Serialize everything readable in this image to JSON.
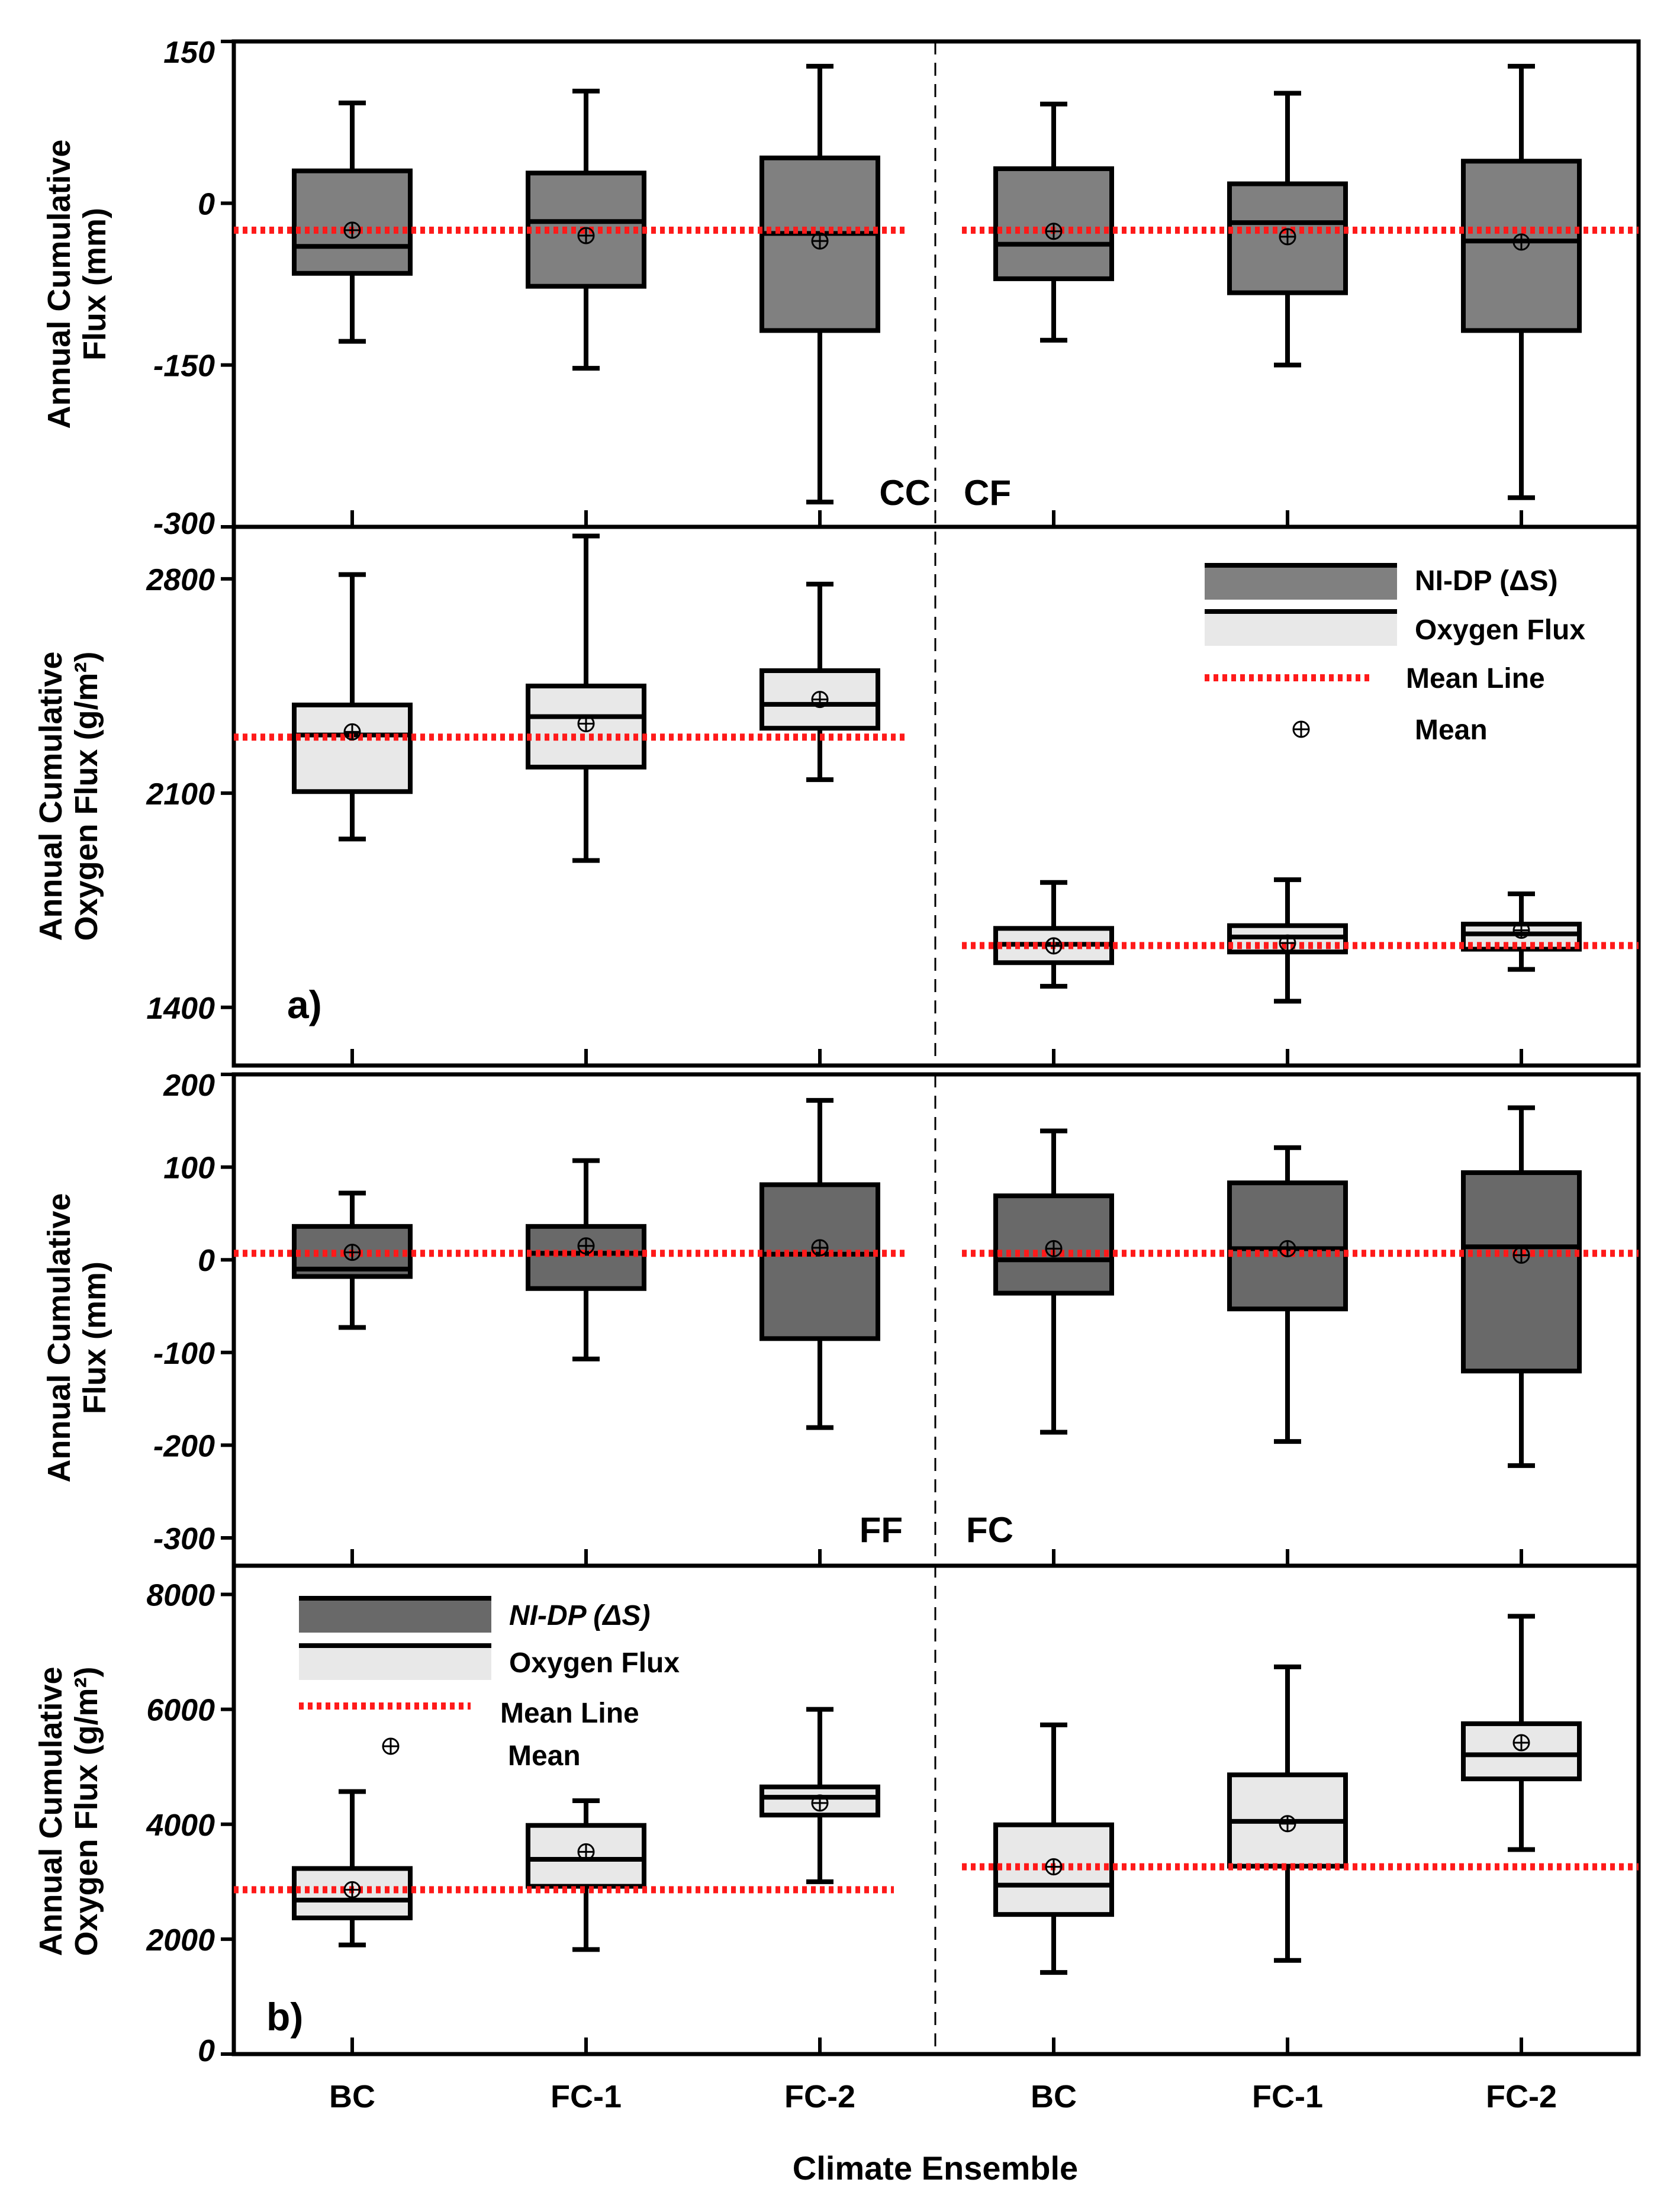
{
  "figure": {
    "xlabel": "Climate Ensemble",
    "categories": [
      "BC",
      "FC-1",
      "FC-2",
      "BC",
      "FC-1",
      "FC-2"
    ]
  },
  "legend": {
    "ni_dp": "NI-DP (ΔS)",
    "oxygen": "Oxygen Flux",
    "mean_line": "Mean Line",
    "mean": "Mean"
  },
  "colors": {
    "water_box": "#808080",
    "water_box_b": "#696969",
    "oxygen_box": "#e8e8e8",
    "mean_line": "#ff1a1a",
    "axis": "#000000"
  },
  "chart_data": [
    {
      "id": "panel-a-water",
      "type": "boxplot",
      "ylabel": [
        "Annual Cumulative",
        "Flux (mm)"
      ],
      "ylim": [
        -300,
        150
      ],
      "yticks": [
        150,
        0,
        -150,
        -300
      ],
      "group_labels": [
        "CC",
        "CF"
      ],
      "mean_lines": [
        -25,
        -25
      ],
      "boxes": [
        {
          "category": "BC",
          "min": -128,
          "q1": -65,
          "median": -40,
          "q3": 30,
          "max": 93,
          "mean": -25
        },
        {
          "category": "FC-1",
          "min": -153,
          "q1": -77,
          "median": -17,
          "q3": 28,
          "max": 104,
          "mean": -30
        },
        {
          "category": "FC-2",
          "min": -277,
          "q1": -118,
          "median": -28,
          "q3": 42,
          "max": 127,
          "mean": -35
        },
        {
          "category": "BC",
          "min": -127,
          "q1": -70,
          "median": -38,
          "q3": 32,
          "max": 92,
          "mean": -26
        },
        {
          "category": "FC-1",
          "min": -150,
          "q1": -83,
          "median": -18,
          "q3": 18,
          "max": 102,
          "mean": -31
        },
        {
          "category": "FC-2",
          "min": -273,
          "q1": -118,
          "median": -35,
          "q3": 39,
          "max": 127,
          "mean": -36
        }
      ]
    },
    {
      "id": "panel-a-oxygen",
      "type": "boxplot",
      "ylabel": [
        "Annual Cumulative",
        "Oxygen Flux (g/m²)"
      ],
      "panel_label": "a)",
      "ylim": [
        1210,
        2970
      ],
      "yticks": [
        2800,
        2100,
        1400
      ],
      "mean_lines": [
        2283,
        1602
      ],
      "boxes": [
        {
          "category": "BC",
          "min": 1950,
          "q1": 2105,
          "median": 2290,
          "q3": 2388,
          "max": 2814,
          "mean": 2300
        },
        {
          "category": "FC-1",
          "min": 1880,
          "q1": 2185,
          "median": 2350,
          "q3": 2450,
          "max": 2940,
          "mean": 2327
        },
        {
          "category": "FC-2",
          "min": 2144,
          "q1": 2312,
          "median": 2390,
          "q3": 2500,
          "max": 2783,
          "mean": 2406
        },
        {
          "category": "BC",
          "min": 1469,
          "q1": 1546,
          "median": 1606,
          "q3": 1658,
          "max": 1808,
          "mean": 1601
        },
        {
          "category": "FC-1",
          "min": 1420,
          "q1": 1581,
          "median": 1630,
          "q3": 1667,
          "max": 1817,
          "mean": 1610
        },
        {
          "category": "FC-2",
          "min": 1524,
          "q1": 1590,
          "median": 1640,
          "q3": 1672,
          "max": 1771,
          "mean": 1652
        }
      ]
    },
    {
      "id": "panel-b-water",
      "type": "boxplot",
      "ylabel": [
        "Annual Cumulative",
        "Flux (mm)"
      ],
      "ylim": [
        -330,
        200
      ],
      "yticks": [
        200,
        100,
        0,
        -100,
        -200,
        -300
      ],
      "group_labels": [
        "FF",
        "FC"
      ],
      "mean_lines": [
        7,
        7
      ],
      "boxes": [
        {
          "category": "BC",
          "min": -73,
          "q1": -18,
          "median": -10,
          "q3": 36,
          "max": 72,
          "mean": 8
        },
        {
          "category": "FC-1",
          "min": -107,
          "q1": -31,
          "median": 7,
          "q3": 36,
          "max": 107,
          "mean": 15
        },
        {
          "category": "FC-2",
          "min": -181,
          "q1": -85,
          "median": 6,
          "q3": 81,
          "max": 172,
          "mean": 13
        },
        {
          "category": "BC",
          "min": -186,
          "q1": -36,
          "median": 0,
          "q3": 69,
          "max": 139,
          "mean": 12
        },
        {
          "category": "FC-1",
          "min": -196,
          "q1": -53,
          "median": 12,
          "q3": 83,
          "max": 121,
          "mean": 12
        },
        {
          "category": "FC-2",
          "min": -222,
          "q1": -120,
          "median": 14,
          "q3": 94,
          "max": 164,
          "mean": 5
        }
      ]
    },
    {
      "id": "panel-b-oxygen",
      "type": "boxplot",
      "ylabel": [
        "Annual Cumulative",
        "Oxygen Flux (g/m²)"
      ],
      "panel_label": "b)",
      "ylim": [
        0,
        8500
      ],
      "yticks": [
        8000,
        6000,
        4000,
        2000,
        0
      ],
      "mean_lines": [
        2860,
        3260
      ],
      "boxes": [
        {
          "category": "BC",
          "min": 1900,
          "q1": 2370,
          "median": 2680,
          "q3": 3230,
          "max": 4570,
          "mean": 2860
        },
        {
          "category": "FC-1",
          "min": 1820,
          "q1": 2920,
          "median": 3390,
          "q3": 3980,
          "max": 4410,
          "mean": 3520
        },
        {
          "category": "FC-2",
          "min": 3000,
          "q1": 4160,
          "median": 4470,
          "q3": 4650,
          "max": 6000,
          "mean": 4370
        },
        {
          "category": "BC",
          "min": 1420,
          "q1": 2430,
          "median": 2940,
          "q3": 3990,
          "max": 5730,
          "mean": 3260
        },
        {
          "category": "FC-1",
          "min": 1630,
          "q1": 3270,
          "median": 4050,
          "q3": 4860,
          "max": 6740,
          "mean": 4010
        },
        {
          "category": "FC-2",
          "min": 3560,
          "q1": 4790,
          "median": 5210,
          "q3": 5750,
          "max": 7620,
          "mean": 5420
        }
      ]
    }
  ]
}
